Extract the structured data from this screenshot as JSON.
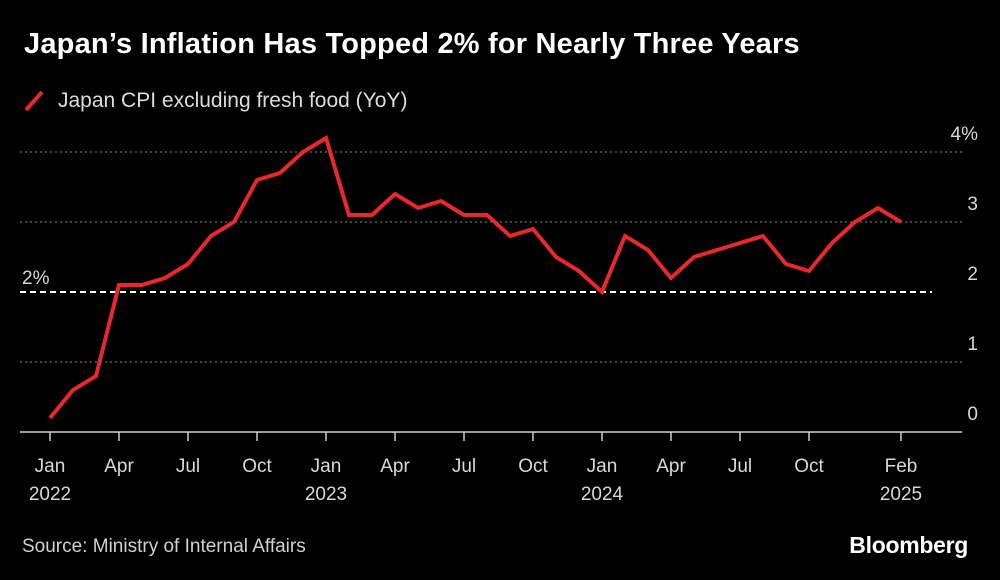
{
  "title": "Japan’s Inflation Has Topped 2% for Nearly Three Years",
  "legend": {
    "label": "Japan CPI excluding fresh food (YoY)"
  },
  "source": "Source: Ministry of Internal Affairs",
  "brand": "Bloomberg",
  "colors": {
    "series": "#e8282d",
    "background": "#000000",
    "grid": "#8a8a8a",
    "text": "#ffffff"
  },
  "chart_data": {
    "type": "line",
    "title": "Japan’s Inflation Has Topped 2% for Nearly Three Years",
    "xlabel": "",
    "ylabel": "",
    "ylim": [
      0,
      4
    ],
    "y_ticks": [
      {
        "value": 0,
        "label": "0"
      },
      {
        "value": 1,
        "label": "1"
      },
      {
        "value": 2,
        "label": "2"
      },
      {
        "value": 3,
        "label": "3"
      },
      {
        "value": 4,
        "label": "4%"
      }
    ],
    "reference_line": {
      "value": 2,
      "label": "2%",
      "style": "dashed"
    },
    "x_ticks": [
      {
        "index": 0,
        "line1": "Jan",
        "line2": "2022"
      },
      {
        "index": 3,
        "line1": "Apr",
        "line2": ""
      },
      {
        "index": 6,
        "line1": "Jul",
        "line2": ""
      },
      {
        "index": 9,
        "line1": "Oct",
        "line2": ""
      },
      {
        "index": 12,
        "line1": "Jan",
        "line2": "2023"
      },
      {
        "index": 15,
        "line1": "Apr",
        "line2": ""
      },
      {
        "index": 18,
        "line1": "Jul",
        "line2": ""
      },
      {
        "index": 21,
        "line1": "Oct",
        "line2": ""
      },
      {
        "index": 24,
        "line1": "Jan",
        "line2": "2024"
      },
      {
        "index": 27,
        "line1": "Apr",
        "line2": ""
      },
      {
        "index": 30,
        "line1": "Jul",
        "line2": ""
      },
      {
        "index": 33,
        "line1": "Oct",
        "line2": ""
      },
      {
        "index": 37,
        "line1": "Feb",
        "line2": "2025"
      }
    ],
    "series": [
      {
        "name": "Japan CPI excluding fresh food (YoY)",
        "x": [
          "2022-01",
          "2022-02",
          "2022-03",
          "2022-04",
          "2022-05",
          "2022-06",
          "2022-07",
          "2022-08",
          "2022-09",
          "2022-10",
          "2022-11",
          "2022-12",
          "2023-01",
          "2023-02",
          "2023-03",
          "2023-04",
          "2023-05",
          "2023-06",
          "2023-07",
          "2023-08",
          "2023-09",
          "2023-10",
          "2023-11",
          "2023-12",
          "2024-01",
          "2024-02",
          "2024-03",
          "2024-04",
          "2024-05",
          "2024-06",
          "2024-07",
          "2024-08",
          "2024-09",
          "2024-10",
          "2024-11",
          "2024-12",
          "2025-01",
          "2025-02"
        ],
        "values": [
          0.2,
          0.6,
          0.8,
          2.1,
          2.1,
          2.2,
          2.4,
          2.8,
          3.0,
          3.6,
          3.7,
          4.0,
          4.2,
          3.1,
          3.1,
          3.4,
          3.2,
          3.3,
          3.1,
          3.1,
          2.8,
          2.9,
          2.5,
          2.3,
          2.0,
          2.8,
          2.6,
          2.2,
          2.5,
          2.6,
          2.7,
          2.8,
          2.4,
          2.3,
          2.7,
          3.0,
          3.2,
          3.0
        ]
      }
    ]
  }
}
